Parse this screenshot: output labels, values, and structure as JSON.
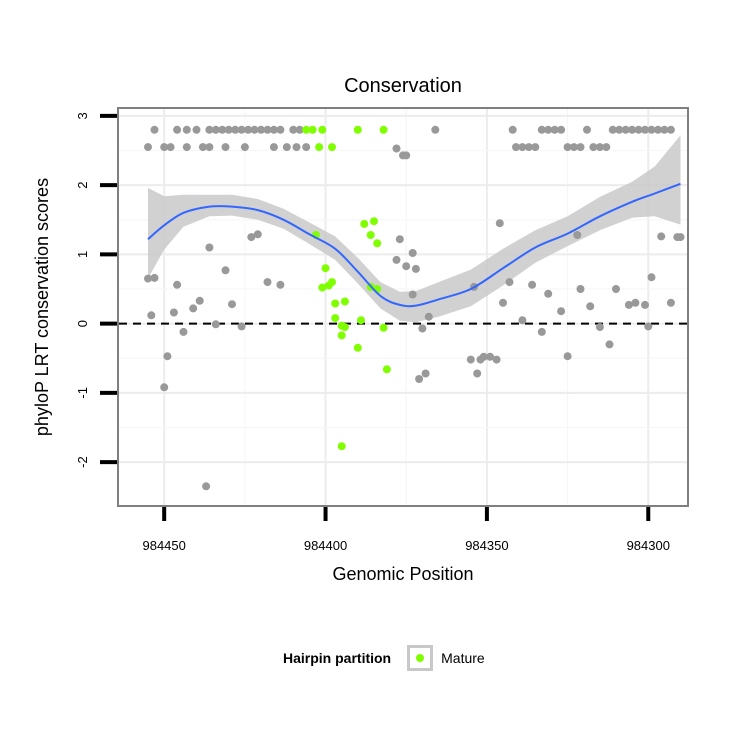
{
  "chart_data": {
    "type": "scatter",
    "title": "Conservation",
    "xlabel": "Genomic Position",
    "ylabel": "phyloP LRT conservation scores",
    "x_reversed": true,
    "xlim": [
      984464,
      984288
    ],
    "ylim": [
      -2.62,
      3.1
    ],
    "x_ticks": [
      984450,
      984400,
      984350,
      984300
    ],
    "x_tick_labels": [
      "984450",
      "984400",
      "984350",
      "984300"
    ],
    "y_ticks": [
      -2,
      -1,
      0,
      1,
      2,
      3
    ],
    "y_tick_labels": [
      "-2",
      "-1",
      "0",
      "1",
      "2",
      "3"
    ],
    "grid": true,
    "reference_line": {
      "y": 0,
      "style": "dashed",
      "color": "#000000"
    },
    "colors": {
      "other": "#999999",
      "mature": "#7fff00",
      "smooth": "#3366ff",
      "band": "#c9c9c9"
    },
    "legend": {
      "title": "Hairpin partition",
      "entries": [
        "Mature"
      ],
      "placement": "bottom"
    },
    "series": [
      {
        "name": "Mature",
        "points": [
          [
            984406,
            2.8
          ],
          [
            984404,
            2.8
          ],
          [
            984402,
            2.55
          ],
          [
            984401,
            2.8
          ],
          [
            984398,
            2.55
          ],
          [
            984390,
            2.8
          ],
          [
            984382,
            2.8
          ],
          [
            984388,
            1.44
          ],
          [
            984385,
            1.48
          ],
          [
            984386,
            1.28
          ],
          [
            984384,
            1.16
          ],
          [
            984403,
            1.28
          ],
          [
            984400,
            0.8
          ],
          [
            984399,
            0.55
          ],
          [
            984401,
            0.52
          ],
          [
            984398,
            0.6
          ],
          [
            984397,
            0.29
          ],
          [
            984394,
            0.32
          ],
          [
            984397,
            0.08
          ],
          [
            984395,
            -0.03
          ],
          [
            984394,
            -0.05
          ],
          [
            984395,
            -0.17
          ],
          [
            984389,
            0.05
          ],
          [
            984384,
            0.5
          ],
          [
            984386,
            0.53
          ],
          [
            984382,
            -0.06
          ],
          [
            984390,
            -0.35
          ],
          [
            984381,
            -0.66
          ],
          [
            984395,
            -1.77
          ]
        ]
      },
      {
        "name": "",
        "points": [
          [
            984455,
            2.55
          ],
          [
            984453,
            2.8
          ],
          [
            984450,
            2.55
          ],
          [
            984448,
            2.55
          ],
          [
            984446,
            2.8
          ],
          [
            984443,
            2.8
          ],
          [
            984440,
            2.8
          ],
          [
            984438,
            2.55
          ],
          [
            984436,
            2.55
          ],
          [
            984434,
            2.8
          ],
          [
            984432,
            2.8
          ],
          [
            984430,
            2.8
          ],
          [
            984428,
            2.8
          ],
          [
            984426,
            2.8
          ],
          [
            984424,
            2.8
          ],
          [
            984422,
            2.8
          ],
          [
            984420,
            2.8
          ],
          [
            984418,
            2.8
          ],
          [
            984416,
            2.8
          ],
          [
            984414,
            2.8
          ],
          [
            984410,
            2.8
          ],
          [
            984408,
            2.8
          ],
          [
            984412,
            2.55
          ],
          [
            984409,
            2.55
          ],
          [
            984406,
            2.55
          ],
          [
            984431,
            2.55
          ],
          [
            984425,
            2.55
          ],
          [
            984416,
            2.55
          ],
          [
            984436,
            2.8
          ],
          [
            984443,
            2.55
          ],
          [
            984376,
            2.43
          ],
          [
            984375,
            2.43
          ],
          [
            984378,
            2.53
          ],
          [
            984366,
            2.8
          ],
          [
            984354,
            0.53
          ],
          [
            984355,
            -0.52
          ],
          [
            984352,
            -0.52
          ],
          [
            984351,
            -0.48
          ],
          [
            984349,
            -0.48
          ],
          [
            984347,
            -0.52
          ],
          [
            984353,
            -0.72
          ],
          [
            984346,
            1.45
          ],
          [
            984343,
            0.6
          ],
          [
            984345,
            0.3
          ],
          [
            984342,
            2.8
          ],
          [
            984341,
            2.55
          ],
          [
            984339,
            2.55
          ],
          [
            984337,
            2.55
          ],
          [
            984335,
            2.55
          ],
          [
            984333,
            2.8
          ],
          [
            984331,
            2.8
          ],
          [
            984329,
            2.8
          ],
          [
            984327,
            2.8
          ],
          [
            984325,
            2.55
          ],
          [
            984323,
            2.55
          ],
          [
            984321,
            2.55
          ],
          [
            984319,
            2.8
          ],
          [
            984317,
            2.55
          ],
          [
            984315,
            2.55
          ],
          [
            984313,
            2.55
          ],
          [
            984311,
            2.8
          ],
          [
            984309,
            2.8
          ],
          [
            984307,
            2.8
          ],
          [
            984305,
            2.8
          ],
          [
            984303,
            2.8
          ],
          [
            984301,
            2.8
          ],
          [
            984299,
            2.8
          ],
          [
            984297,
            2.8
          ],
          [
            984295,
            2.8
          ],
          [
            984293,
            2.8
          ],
          [
            984339,
            0.05
          ],
          [
            984336,
            0.56
          ],
          [
            984333,
            -0.12
          ],
          [
            984331,
            0.43
          ],
          [
            984327,
            0.18
          ],
          [
            984325,
            -0.47
          ],
          [
            984322,
            1.28
          ],
          [
            984321,
            0.5
          ],
          [
            984318,
            0.25
          ],
          [
            984315,
            -0.05
          ],
          [
            984312,
            -0.3
          ],
          [
            984310,
            0.5
          ],
          [
            984306,
            0.27
          ],
          [
            984304,
            0.3
          ],
          [
            984301,
            0.27
          ],
          [
            984299,
            0.67
          ],
          [
            984300,
            -0.04
          ],
          [
            984296,
            1.26
          ],
          [
            984293,
            0.3
          ],
          [
            984291,
            1.25
          ],
          [
            984290,
            1.25
          ],
          [
            984455,
            0.65
          ],
          [
            984454,
            0.12
          ],
          [
            984453,
            0.66
          ],
          [
            984450,
            -0.92
          ],
          [
            984449,
            -0.47
          ],
          [
            984447,
            0.16
          ],
          [
            984446,
            0.56
          ],
          [
            984444,
            -0.12
          ],
          [
            984441,
            0.22
          ],
          [
            984439,
            0.33
          ],
          [
            984437,
            -2.35
          ],
          [
            984436,
            1.1
          ],
          [
            984434,
            -0.01
          ],
          [
            984431,
            0.77
          ],
          [
            984429,
            0.28
          ],
          [
            984426,
            -0.04
          ],
          [
            984423,
            1.25
          ],
          [
            984421,
            1.29
          ],
          [
            984418,
            0.6
          ],
          [
            984414,
            0.56
          ],
          [
            984378,
            0.92
          ],
          [
            984377,
            1.22
          ],
          [
            984375,
            0.83
          ],
          [
            984373,
            1.02
          ],
          [
            984372,
            0.79
          ],
          [
            984373,
            0.42
          ],
          [
            984371,
            -0.8
          ],
          [
            984370,
            -0.07
          ],
          [
            984369,
            -0.72
          ],
          [
            984368,
            0.1
          ]
        ]
      }
    ],
    "smooth": [
      [
        984455,
        1.22
      ],
      [
        984450,
        1.42
      ],
      [
        984444,
        1.6
      ],
      [
        984436,
        1.69
      ],
      [
        984429,
        1.69
      ],
      [
        984421,
        1.64
      ],
      [
        984413,
        1.5
      ],
      [
        984405,
        1.29
      ],
      [
        984397,
        1.08
      ],
      [
        984390,
        0.75
      ],
      [
        984383,
        0.4
      ],
      [
        984377,
        0.27
      ],
      [
        984372,
        0.26
      ],
      [
        984365,
        0.35
      ],
      [
        984355,
        0.5
      ],
      [
        984345,
        0.8
      ],
      [
        984335,
        1.1
      ],
      [
        984325,
        1.3
      ],
      [
        984315,
        1.55
      ],
      [
        984305,
        1.76
      ],
      [
        984298,
        1.88
      ],
      [
        984290,
        2.02
      ]
    ],
    "smooth_lower": [
      [
        984455,
        0.65
      ],
      [
        984450,
        1.07
      ],
      [
        984444,
        1.4
      ],
      [
        984436,
        1.55
      ],
      [
        984429,
        1.56
      ],
      [
        984421,
        1.5
      ],
      [
        984413,
        1.37
      ],
      [
        984405,
        1.15
      ],
      [
        984397,
        0.92
      ],
      [
        984390,
        0.58
      ],
      [
        984383,
        0.22
      ],
      [
        984377,
        0.04
      ],
      [
        984372,
        0.02
      ],
      [
        984365,
        0.1
      ],
      [
        984355,
        0.25
      ],
      [
        984345,
        0.55
      ],
      [
        984335,
        0.88
      ],
      [
        984325,
        1.12
      ],
      [
        984315,
        1.35
      ],
      [
        984305,
        1.53
      ],
      [
        984298,
        1.55
      ],
      [
        984290,
        1.43
      ]
    ],
    "smooth_upper": [
      [
        984455,
        1.96
      ],
      [
        984450,
        1.84
      ],
      [
        984444,
        1.86
      ],
      [
        984436,
        1.86
      ],
      [
        984429,
        1.86
      ],
      [
        984421,
        1.8
      ],
      [
        984413,
        1.66
      ],
      [
        984405,
        1.46
      ],
      [
        984397,
        1.26
      ],
      [
        984390,
        0.95
      ],
      [
        984383,
        0.6
      ],
      [
        984377,
        0.46
      ],
      [
        984372,
        0.47
      ],
      [
        984365,
        0.6
      ],
      [
        984355,
        0.78
      ],
      [
        984345,
        1.08
      ],
      [
        984335,
        1.35
      ],
      [
        984325,
        1.55
      ],
      [
        984315,
        1.83
      ],
      [
        984305,
        2.05
      ],
      [
        984298,
        2.27
      ],
      [
        984290,
        2.72
      ]
    ]
  }
}
